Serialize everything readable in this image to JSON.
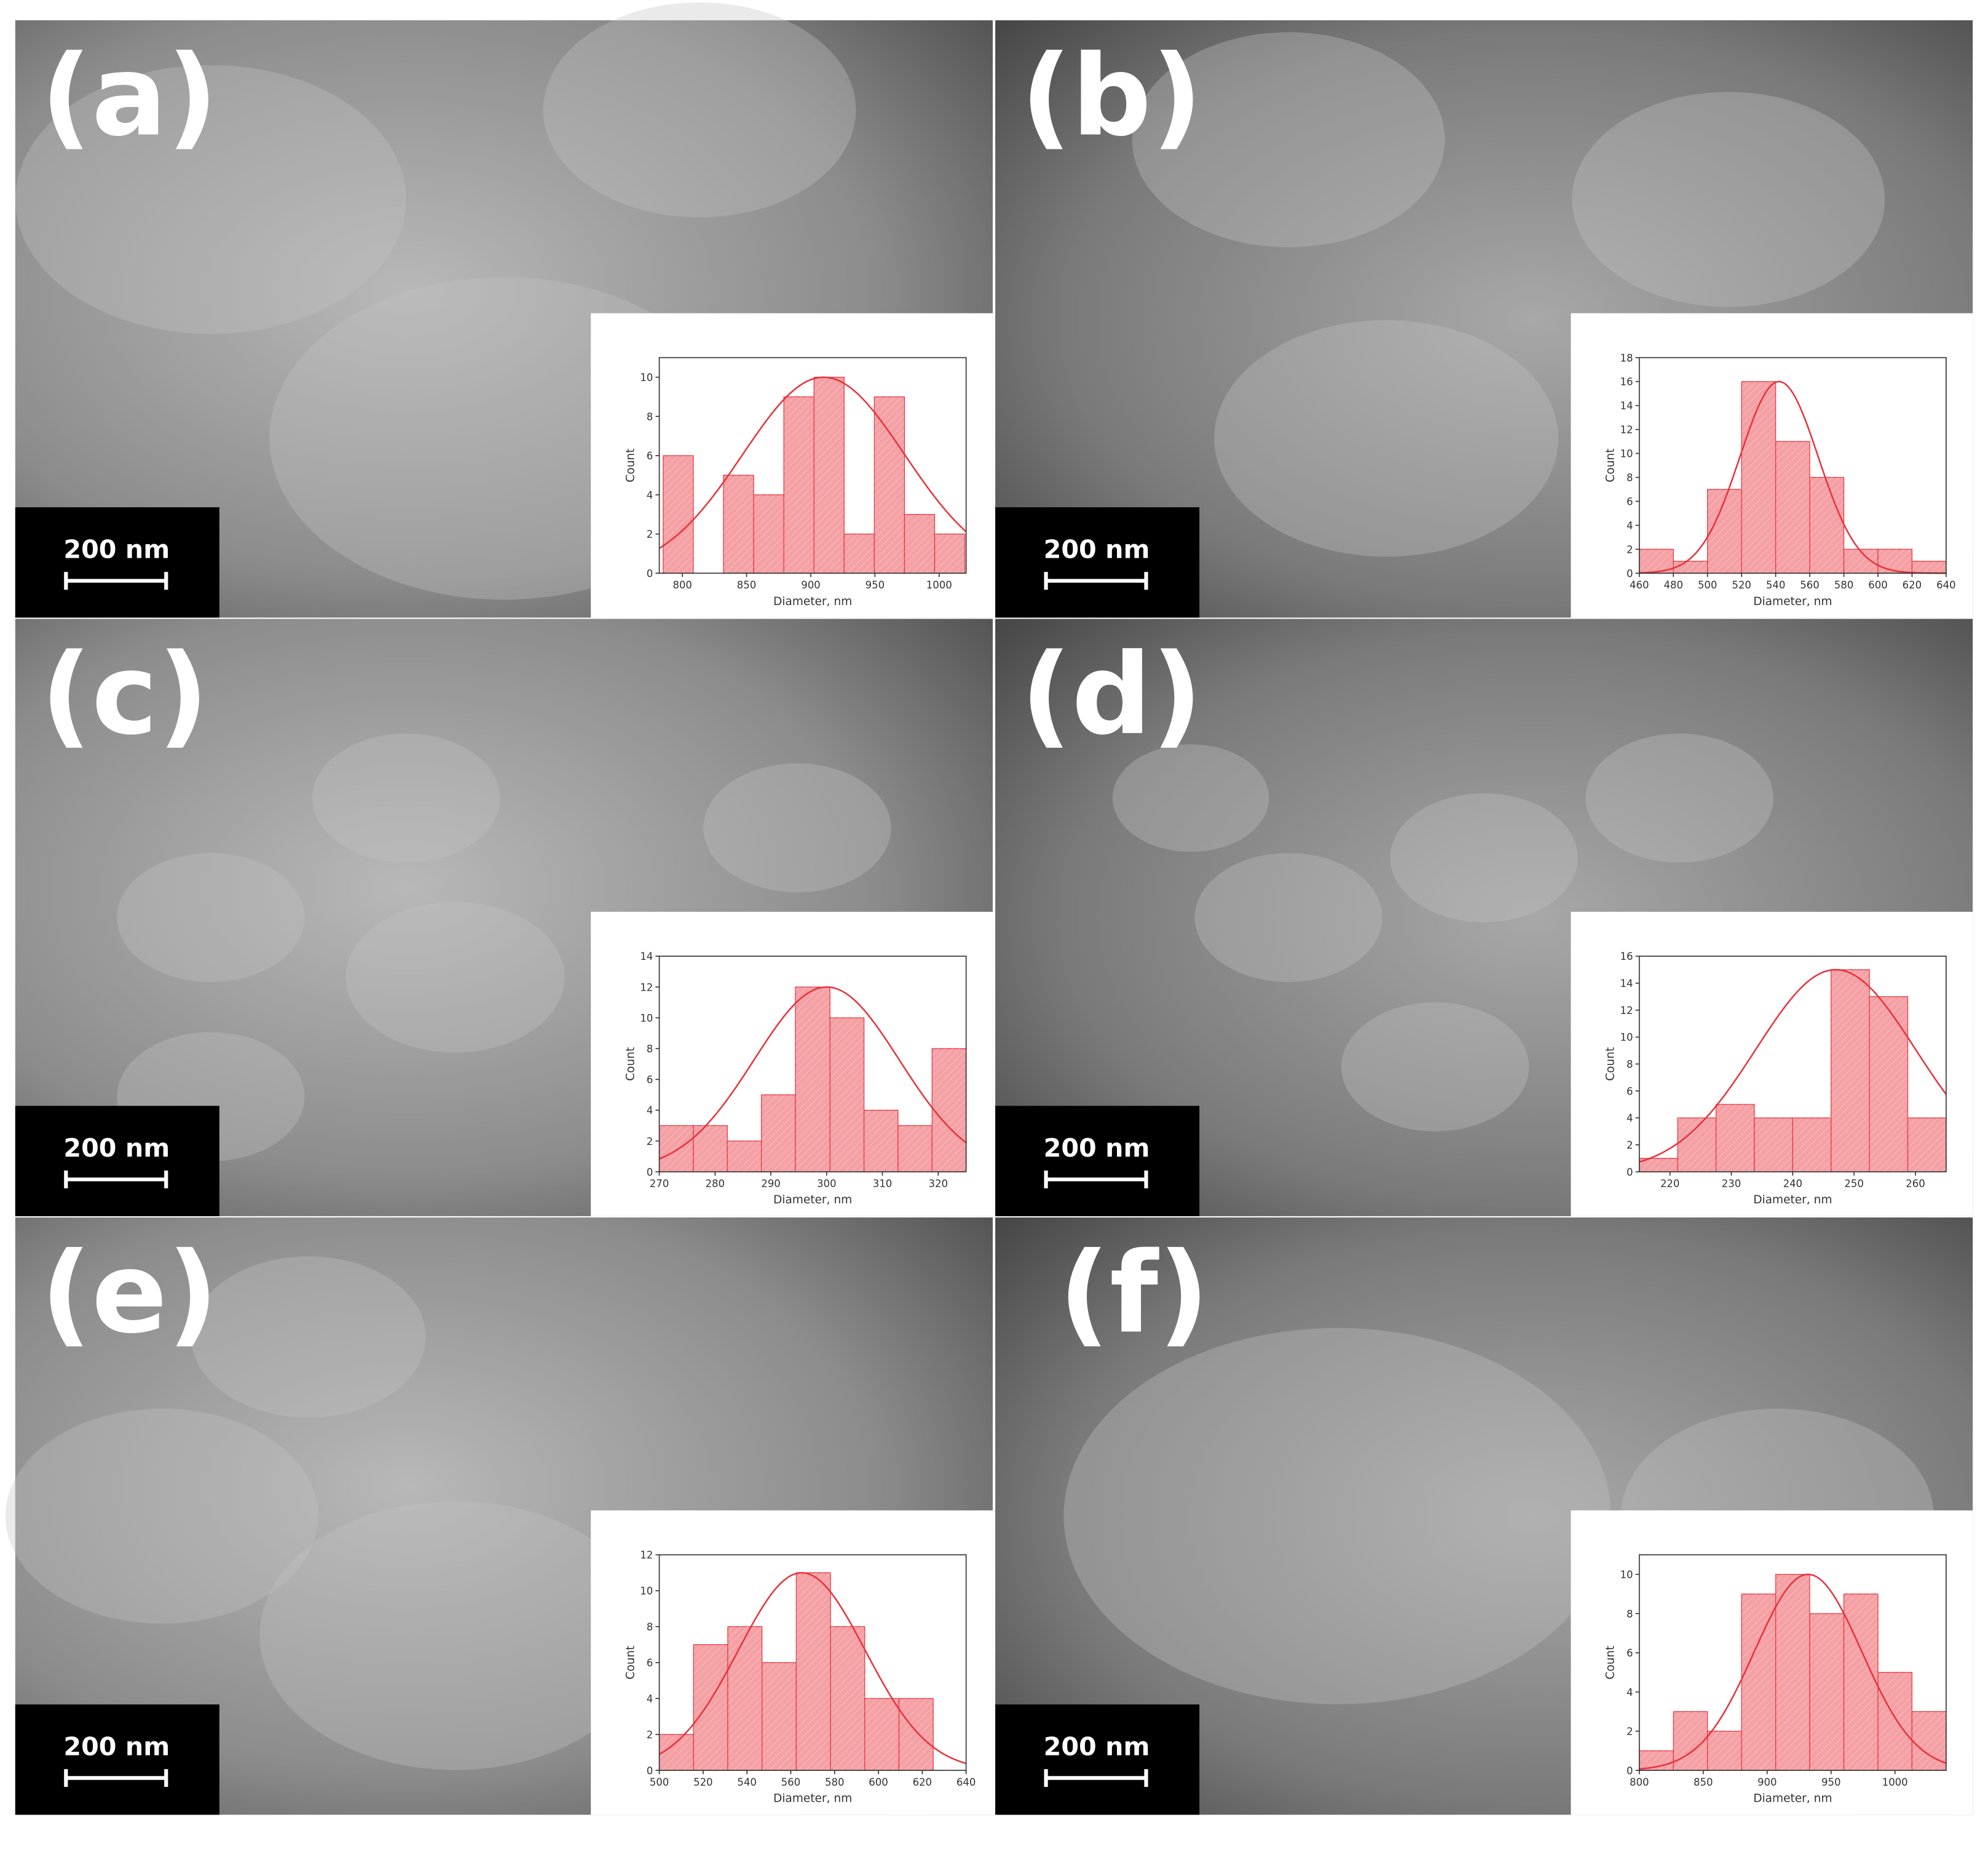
{
  "chart_data": [
    {
      "type": "histogram",
      "panel_label": "(a)",
      "scale_bar": "200 nm",
      "xlabel": "Diameter, nm",
      "ylabel": "Count",
      "bins": [
        785,
        808.5,
        832,
        855.5,
        879,
        902.5,
        926,
        949.5,
        973,
        996.5,
        1020
      ],
      "counts": [
        6,
        0,
        5,
        4,
        9,
        10,
        2,
        9,
        3,
        2
      ],
      "color": "#f4a0a4",
      "line_color": "#e8313a",
      "fit": {
        "x0": 910,
        "sigma": 63,
        "peak": 10
      },
      "xlim": [
        782,
        1021
      ],
      "xticks": [
        800,
        850,
        900,
        950,
        1000
      ],
      "ylim": [
        0,
        11
      ],
      "yticks": [
        0,
        2,
        4,
        6,
        8,
        10
      ]
    },
    {
      "type": "histogram",
      "panel_label": "(b)",
      "scale_bar": "200 nm",
      "xlabel": "Diameter, nm",
      "ylabel": "Count",
      "bins": [
        460,
        480,
        500,
        520,
        540,
        560,
        580,
        600,
        620,
        640
      ],
      "counts": [
        2,
        1,
        7,
        16,
        11,
        8,
        2,
        2,
        1
      ],
      "color": "#f4a0a4",
      "line_color": "#e8313a",
      "fit": {
        "x0": 542,
        "sigma": 23,
        "peak": 16
      },
      "xlim": [
        460,
        640
      ],
      "xticks": [
        460,
        480,
        500,
        520,
        540,
        560,
        580,
        600,
        620,
        640
      ],
      "ylim": [
        0,
        18
      ],
      "yticks": [
        0,
        2,
        4,
        6,
        8,
        10,
        12,
        14,
        16,
        18
      ]
    },
    {
      "type": "histogram",
      "panel_label": "(c)",
      "scale_bar": "200 nm",
      "xlabel": "Diameter, nm",
      "ylabel": "Count",
      "bins": [
        270,
        276.1,
        282.2,
        288.3,
        294.4,
        300.6,
        306.7,
        312.8,
        318.9,
        325
      ],
      "counts": [
        3,
        3,
        2,
        5,
        12,
        10,
        4,
        3,
        8
      ],
      "color": "#f4a0a4",
      "line_color": "#e8313a",
      "fit": {
        "x0": 300,
        "sigma": 13,
        "peak": 12
      },
      "xlim": [
        270,
        325
      ],
      "xticks": [
        270,
        280,
        290,
        300,
        310,
        320
      ],
      "ylim": [
        0,
        14
      ],
      "yticks": [
        0,
        2,
        4,
        6,
        8,
        10,
        12,
        14
      ]
    },
    {
      "type": "histogram",
      "panel_label": "(d)",
      "scale_bar": "200 nm",
      "xlabel": "Diameter, nm",
      "ylabel": "Count",
      "bins": [
        215,
        221.25,
        227.5,
        233.75,
        240,
        246.25,
        252.5,
        258.75,
        265
      ],
      "counts": [
        1,
        4,
        5,
        4,
        4,
        15,
        13,
        4
      ],
      "color": "#f4a0a4",
      "line_color": "#e8313a",
      "fit": {
        "x0": 247,
        "sigma": 13,
        "peak": 15
      },
      "xlim": [
        215,
        265
      ],
      "xticks": [
        220,
        230,
        240,
        250,
        260
      ],
      "ylim": [
        0,
        16
      ],
      "yticks": [
        0,
        2,
        4,
        6,
        8,
        10,
        12,
        14,
        16
      ]
    },
    {
      "type": "histogram",
      "panel_label": "(e)",
      "scale_bar": "200 nm",
      "xlabel": "Diameter, nm",
      "ylabel": "Count",
      "bins": [
        500,
        515.625,
        531.25,
        546.875,
        562.5,
        578.125,
        593.75,
        609.375,
        625
      ],
      "counts": [
        2,
        7,
        8,
        6,
        11,
        8,
        4,
        4
      ],
      "color": "#f4a0a4",
      "line_color": "#e8313a",
      "fit": {
        "x0": 565,
        "sigma": 29,
        "peak": 11
      },
      "xlim": [
        500,
        640
      ],
      "xticks": [
        500,
        520,
        540,
        560,
        580,
        600,
        620,
        640
      ],
      "ylim": [
        0,
        12
      ],
      "yticks": [
        0,
        2,
        4,
        6,
        8,
        10,
        12
      ]
    },
    {
      "type": "histogram",
      "panel_label": "(f)",
      "scale_bar": "200 nm",
      "xlabel": "Diameter, nm",
      "ylabel": "Count",
      "bins": [
        800,
        826.7,
        853.3,
        880,
        906.7,
        933.3,
        960,
        986.7,
        1013.3,
        1040
      ],
      "counts": [
        1,
        3,
        2,
        9,
        10,
        8,
        9,
        5,
        3
      ],
      "color": "#f4a0a4",
      "line_color": "#e8313a",
      "fit": {
        "x0": 932,
        "sigma": 42,
        "peak": 10
      },
      "xlim": [
        800,
        1040
      ],
      "xticks": [
        800,
        850,
        900,
        950,
        1000
      ],
      "ylim": [
        0,
        11
      ],
      "yticks": [
        0,
        2,
        4,
        6,
        8,
        10
      ]
    }
  ]
}
